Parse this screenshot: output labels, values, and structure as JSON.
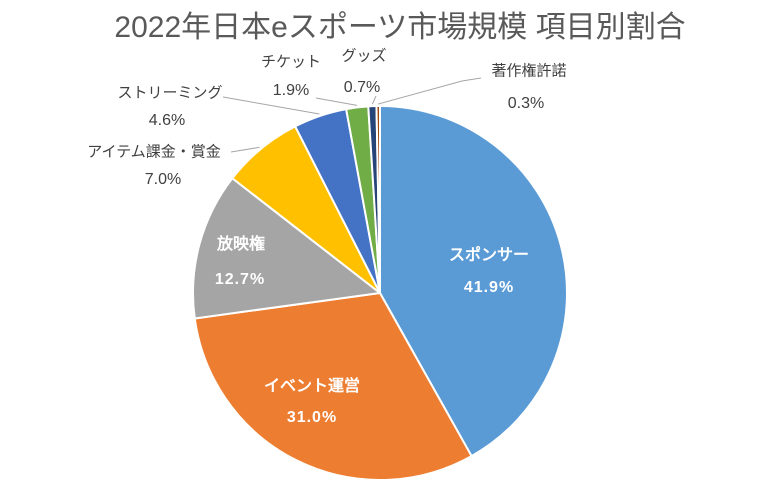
{
  "title": "2022年日本eスポーツ市場規模 項目別割合",
  "chart_data": {
    "type": "pie",
    "title": "2022年日本eスポーツ市場規模 項目別割合",
    "unit": "%",
    "start_angle_deg": 0,
    "direction": "clockwise",
    "legend": "none",
    "slices": [
      {
        "label": "スポンサー",
        "value": 41.9,
        "pct_text": "41.9%",
        "color": "#5B9BD5",
        "label_placement": "inside"
      },
      {
        "label": "イベント運営",
        "value": 31.0,
        "pct_text": "31.0%",
        "color": "#ED7D31",
        "label_placement": "inside"
      },
      {
        "label": "放映権",
        "value": 12.7,
        "pct_text": "12.7%",
        "color": "#A5A5A5",
        "label_placement": "inside"
      },
      {
        "label": "アイテム課金・賞金",
        "value": 7.0,
        "pct_text": "7.0%",
        "color": "#FFC000",
        "label_placement": "outside"
      },
      {
        "label": "ストリーミング",
        "value": 4.6,
        "pct_text": "4.6%",
        "color": "#4472C4",
        "label_placement": "outside"
      },
      {
        "label": "チケット",
        "value": 1.9,
        "pct_text": "1.9%",
        "color": "#70AD47",
        "label_placement": "outside"
      },
      {
        "label": "グッズ",
        "value": 0.7,
        "pct_text": "0.7%",
        "color": "#264478",
        "label_placement": "outside"
      },
      {
        "label": "著作権許諾",
        "value": 0.3,
        "pct_text": "0.3%",
        "color": "#9E480E",
        "label_placement": "outside"
      }
    ],
    "layout": {
      "center": [
        380,
        293
      ],
      "radius": 187,
      "slice_border_color": "#FFFFFF",
      "title_color": "#595959",
      "inside_label_color": "#FFFFFF",
      "outside_label_color": "#404040",
      "leader_line_color": "#A6A6A6",
      "label_positions": [
        {
          "name": [
            489,
            256
          ],
          "pct": [
            489,
            288
          ]
        },
        {
          "name": [
            312,
            387
          ],
          "pct": [
            312,
            418
          ]
        },
        {
          "name": [
            241,
            245
          ],
          "pct": [
            240,
            280
          ]
        },
        {
          "name": [
            154,
            152
          ],
          "pct": [
            163,
            180
          ]
        },
        {
          "name": [
            170,
            93
          ],
          "pct": [
            167,
            121
          ]
        },
        {
          "name": [
            291,
            62
          ],
          "pct": [
            291,
            91
          ]
        },
        {
          "name": [
            364,
            56
          ],
          "pct": [
            362,
            88
          ]
        },
        {
          "name": [
            529,
            71
          ],
          "pct": [
            526,
            104
          ]
        }
      ],
      "leader_anchors": {
        "3": [
          [
            231,
            152
          ]
        ],
        "4": [
          [
            223,
            97
          ]
        ],
        "5": [
          [
            316,
            98
          ]
        ],
        "6": [
          [
            376,
            96
          ]
        ],
        "7": [
          [
            481,
            78
          ],
          [
            462,
            81
          ]
        ]
      }
    }
  }
}
